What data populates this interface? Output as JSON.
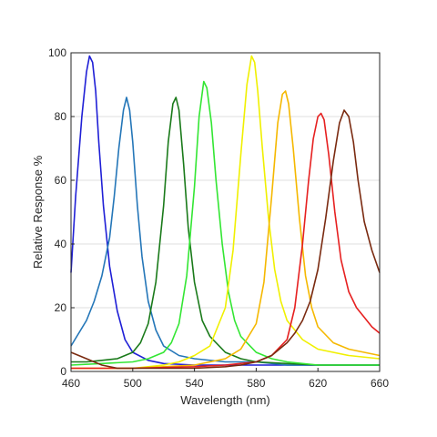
{
  "chart_data": {
    "type": "line",
    "title": "",
    "xlabel": "Wavelength (nm)",
    "ylabel": "Relative Response %",
    "xlim": [
      460,
      660
    ],
    "ylim": [
      0,
      100
    ],
    "xticks": [
      460,
      500,
      540,
      580,
      620,
      660
    ],
    "yticks": [
      0,
      20,
      40,
      60,
      80,
      100
    ],
    "xtick_labels": [
      "460",
      "500",
      "540",
      "580",
      "620",
      "660"
    ],
    "ytick_labels": [
      "0",
      "20",
      "40",
      "60",
      "80",
      "100"
    ],
    "grid": "horizontal",
    "legend": "none",
    "series": [
      {
        "color": "#1f1fd6",
        "x": [
          460,
          463,
          467,
          470,
          472,
          474,
          476,
          478,
          481,
          485,
          490,
          495,
          500,
          510,
          520,
          540,
          560,
          580,
          600,
          620,
          640,
          660
        ],
        "y": [
          31,
          55,
          80,
          94,
          99,
          97,
          88,
          72,
          52,
          33,
          19,
          10,
          6,
          3.5,
          2.5,
          2,
          2,
          2,
          2,
          2,
          2,
          2
        ]
      },
      {
        "color": "#2476b8",
        "x": [
          460,
          465,
          470,
          475,
          480,
          485,
          488,
          491,
          494,
          496,
          498,
          500,
          503,
          506,
          510,
          515,
          520,
          530,
          540,
          560,
          580,
          600,
          620,
          640,
          660
        ],
        "y": [
          8,
          12,
          16,
          22,
          30,
          42,
          55,
          70,
          82,
          86,
          82,
          72,
          52,
          36,
          22,
          13,
          8,
          5,
          4,
          3,
          3,
          2,
          2,
          2,
          2
        ]
      },
      {
        "color": "#1a7a1a",
        "x": [
          460,
          470,
          480,
          490,
          500,
          505,
          510,
          515,
          520,
          523,
          526,
          528,
          530,
          533,
          536,
          540,
          545,
          550,
          560,
          570,
          580,
          600,
          620,
          640,
          660
        ],
        "y": [
          3,
          3,
          3.5,
          4,
          6,
          9,
          15,
          28,
          52,
          72,
          84,
          86,
          82,
          65,
          45,
          28,
          16,
          11,
          6,
          4,
          3,
          2.5,
          2,
          2,
          2
        ]
      },
      {
        "color": "#33e633",
        "x": [
          460,
          480,
          500,
          510,
          520,
          525,
          530,
          535,
          540,
          543,
          546,
          548,
          551,
          554,
          558,
          562,
          566,
          570,
          580,
          590,
          600,
          620,
          640,
          660
        ],
        "y": [
          2,
          2.5,
          3,
          4,
          6,
          9,
          15,
          30,
          58,
          80,
          91,
          89,
          78,
          60,
          40,
          25,
          16,
          11,
          6,
          4,
          3,
          2,
          2,
          2
        ]
      },
      {
        "color": "#f0f000",
        "x": [
          460,
          500,
          520,
          530,
          540,
          550,
          560,
          565,
          570,
          574,
          577,
          579,
          581,
          584,
          588,
          592,
          596,
          600,
          610,
          620,
          640,
          660
        ],
        "y": [
          1,
          1,
          2,
          3,
          5,
          8,
          20,
          38,
          68,
          90,
          99,
          97,
          88,
          70,
          48,
          32,
          22,
          16,
          10,
          7,
          5,
          4
        ]
      },
      {
        "color": "#f5b800",
        "x": [
          460,
          500,
          520,
          540,
          550,
          560,
          570,
          580,
          585,
          590,
          594,
          597,
          599,
          601,
          604,
          608,
          612,
          616,
          620,
          630,
          640,
          660
        ],
        "y": [
          1,
          1,
          1.5,
          2,
          3,
          4,
          7,
          15,
          28,
          55,
          78,
          87,
          88,
          84,
          70,
          48,
          30,
          20,
          14,
          9,
          7,
          5
        ]
      },
      {
        "color": "#e62020",
        "x": [
          460,
          500,
          540,
          560,
          580,
          590,
          600,
          605,
          610,
          614,
          617,
          620,
          622,
          624,
          627,
          631,
          635,
          640,
          645,
          650,
          655,
          660
        ],
        "y": [
          1,
          1,
          1.5,
          2,
          3,
          5,
          10,
          20,
          40,
          60,
          73,
          80,
          81,
          79,
          68,
          50,
          35,
          25,
          20,
          17,
          14,
          12
        ]
      },
      {
        "color": "#7a2a10",
        "x": [
          460,
          465,
          470,
          475,
          480,
          490,
          500,
          520,
          540,
          560,
          570,
          580,
          590,
          600,
          605,
          610,
          615,
          620,
          625,
          630,
          634,
          637,
          640,
          643,
          646,
          650,
          655,
          660
        ],
        "y": [
          6,
          5,
          4,
          3,
          2,
          1,
          1,
          1,
          1,
          1.5,
          2,
          3,
          5,
          9,
          12,
          16,
          22,
          32,
          48,
          66,
          78,
          82,
          80,
          72,
          60,
          47,
          38,
          31
        ]
      }
    ]
  }
}
